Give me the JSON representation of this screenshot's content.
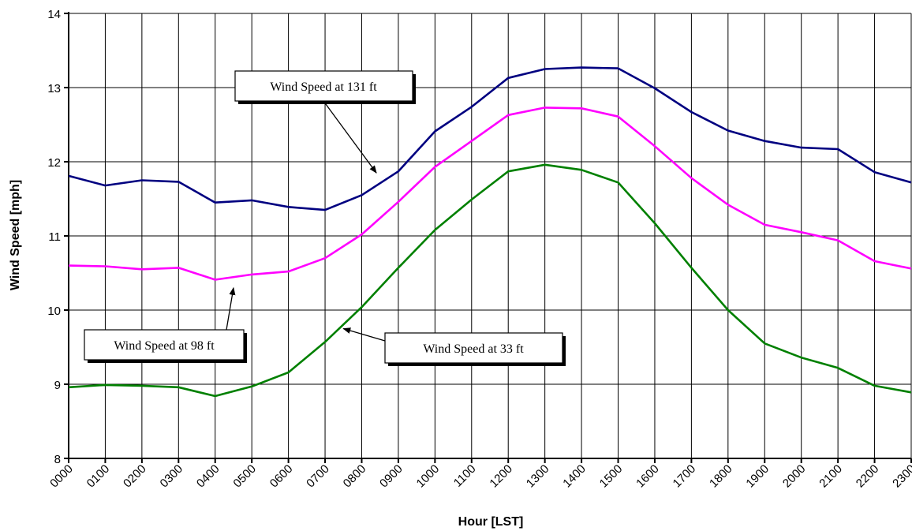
{
  "chart_data": {
    "type": "line",
    "title": "",
    "xlabel": "Hour [LST]",
    "ylabel": "Wind Speed [mph]",
    "ylim": [
      8,
      14
    ],
    "yticks": [
      8,
      9,
      10,
      11,
      12,
      13,
      14
    ],
    "grid": true,
    "legend": "none",
    "categories": [
      "0000",
      "0100",
      "0200",
      "0300",
      "0400",
      "0500",
      "0600",
      "0700",
      "0800",
      "0900",
      "1000",
      "1100",
      "1200",
      "1300",
      "1400",
      "1500",
      "1600",
      "1700",
      "1800",
      "1900",
      "2000",
      "2100",
      "2200",
      "2300"
    ],
    "series": [
      {
        "name": "Wind Speed at 131 ft",
        "color": "#000080",
        "values": [
          11.81,
          11.68,
          11.75,
          11.73,
          11.45,
          11.48,
          11.39,
          11.35,
          11.55,
          11.87,
          12.41,
          12.74,
          13.13,
          13.25,
          13.27,
          13.26,
          12.99,
          12.67,
          12.42,
          12.28,
          12.19,
          12.17,
          11.86,
          11.72
        ]
      },
      {
        "name": "Wind Speed at 98 ft",
        "color": "#ff00ff",
        "values": [
          10.6,
          10.59,
          10.55,
          10.57,
          10.41,
          10.48,
          10.52,
          10.7,
          11.02,
          11.46,
          11.93,
          12.28,
          12.63,
          12.73,
          12.72,
          12.61,
          12.21,
          11.78,
          11.42,
          11.15,
          11.05,
          10.94,
          10.66,
          10.56
        ]
      },
      {
        "name": "Wind Speed at 33 ft",
        "color": "#008000",
        "values": [
          8.96,
          8.99,
          8.98,
          8.96,
          8.84,
          8.97,
          9.16,
          9.57,
          10.04,
          10.57,
          11.08,
          11.49,
          11.87,
          11.96,
          11.89,
          11.72,
          11.17,
          10.57,
          10.0,
          9.55,
          9.36,
          9.22,
          8.98,
          8.89
        ]
      }
    ],
    "annotations": [
      {
        "series": 0,
        "text": "Wind Speed at 131 ft",
        "points_to_x": 8.4,
        "points_to_y": 11.85
      },
      {
        "series": 1,
        "text": "Wind Speed at 98 ft",
        "points_to_x": 4.5,
        "points_to_y": 10.3
      },
      {
        "series": 2,
        "text": "Wind Speed at 33 ft",
        "points_to_x": 7.5,
        "points_to_y": 9.75
      }
    ]
  }
}
